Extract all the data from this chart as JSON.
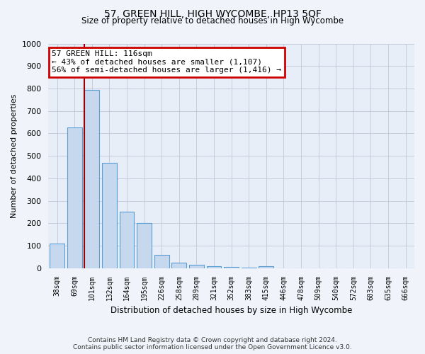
{
  "title": "57, GREEN HILL, HIGH WYCOMBE, HP13 5QF",
  "subtitle": "Size of property relative to detached houses in High Wycombe",
  "xlabel": "Distribution of detached houses by size in High Wycombe",
  "ylabel": "Number of detached properties",
  "footer_line1": "Contains HM Land Registry data © Crown copyright and database right 2024.",
  "footer_line2": "Contains public sector information licensed under the Open Government Licence v3.0.",
  "categories": [
    "38sqm",
    "69sqm",
    "101sqm",
    "132sqm",
    "164sqm",
    "195sqm",
    "226sqm",
    "258sqm",
    "289sqm",
    "321sqm",
    "352sqm",
    "383sqm",
    "415sqm",
    "446sqm",
    "478sqm",
    "509sqm",
    "540sqm",
    "572sqm",
    "603sqm",
    "635sqm",
    "666sqm"
  ],
  "values": [
    110,
    625,
    795,
    470,
    250,
    200,
    60,
    25,
    15,
    10,
    5,
    3,
    10,
    0,
    0,
    0,
    0,
    0,
    0,
    0,
    0
  ],
  "bar_color": "#c5d8ee",
  "bar_edge_color": "#5a9fd4",
  "ylim": [
    0,
    1000
  ],
  "yticks": [
    0,
    100,
    200,
    300,
    400,
    500,
    600,
    700,
    800,
    900,
    1000
  ],
  "red_line_bin_index": 2,
  "annotation_title": "57 GREEN HILL: 116sqm",
  "annotation_line2": "← 43% of detached houses are smaller (1,107)",
  "annotation_line3": "56% of semi-detached houses are larger (1,416) →",
  "annotation_box_color": "#ffffff",
  "annotation_box_edge_color": "#cc0000",
  "red_line_color": "#990000",
  "background_color": "#f0f4fa",
  "plot_bg_color": "#e8eef8",
  "grid_color": "#c0c8d8"
}
